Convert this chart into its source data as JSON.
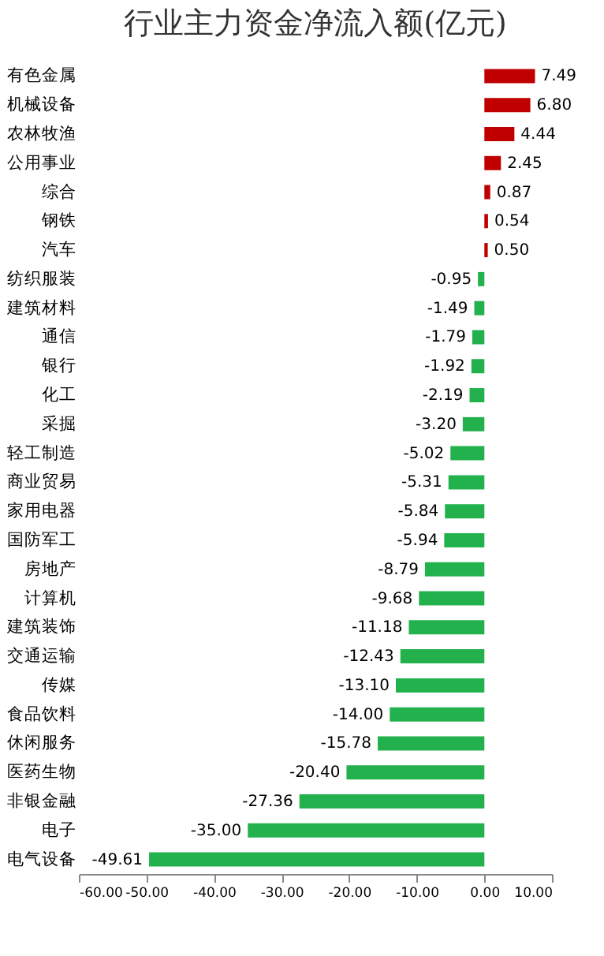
{
  "chart_data": {
    "type": "bar",
    "orientation": "horizontal",
    "title": "行业主力资金净流入额(亿元)",
    "categories": [
      "有色金属",
      "机械设备",
      "农林牧渔",
      "公用事业",
      "综合",
      "钢铁",
      "汽车",
      "纺织服装",
      "建筑材料",
      "通信",
      "银行",
      "化工",
      "采掘",
      "轻工制造",
      "商业贸易",
      "家用电器",
      "国防军工",
      "房地产",
      "计算机",
      "建筑装饰",
      "交通运输",
      "传媒",
      "食品饮料",
      "休闲服务",
      "医药生物",
      "非银金融",
      "电子",
      "电气设备"
    ],
    "values": [
      7.49,
      6.8,
      4.44,
      2.45,
      0.87,
      0.54,
      0.5,
      -0.95,
      -1.49,
      -1.79,
      -1.92,
      -2.19,
      -3.2,
      -5.02,
      -5.31,
      -5.84,
      -5.94,
      -8.79,
      -9.68,
      -11.18,
      -12.43,
      -13.1,
      -14,
      -15.78,
      -20.4,
      -27.36,
      -35,
      -49.61
    ],
    "value_labels": [
      "7.49",
      "6.80",
      "4.44",
      "2.45",
      "0.87",
      "0.54",
      "0.50",
      "-0.95",
      "-1.49",
      "-1.79",
      "-1.92",
      "-2.19",
      "-3.20",
      "-5.02",
      "-5.31",
      "-5.84",
      "-5.94",
      "-8.79",
      "-9.68",
      "-11.18",
      "-12.43",
      "-13.10",
      "-14.00",
      "-15.78",
      "-20.40",
      "-27.36",
      "-35.00",
      "-49.61"
    ],
    "colors": [
      "#c00000",
      "#c00000",
      "#c00000",
      "#c00000",
      "#c00000",
      "#c00000",
      "#c00000",
      "#22b14c",
      "#22b14c",
      "#22b14c",
      "#22b14c",
      "#22b14c",
      "#22b14c",
      "#22b14c",
      "#22b14c",
      "#22b14c",
      "#22b14c",
      "#22b14c",
      "#22b14c",
      "#22b14c",
      "#22b14c",
      "#22b14c",
      "#22b14c",
      "#22b14c",
      "#22b14c",
      "#22b14c",
      "#22b14c",
      "#22b14c"
    ],
    "xlim": [
      -60,
      10
    ],
    "xticks": [
      {
        "value": -60,
        "label": "-60.00"
      },
      {
        "value": -50,
        "label": "-50.00"
      },
      {
        "value": -40,
        "label": "-40.00"
      },
      {
        "value": -30,
        "label": "-30.00"
      },
      {
        "value": -20,
        "label": "-20.00"
      },
      {
        "value": -10,
        "label": "-10.00"
      },
      {
        "value": 0,
        "label": "0.00"
      },
      {
        "value": 10,
        "label": "10.00"
      }
    ],
    "grid": false
  }
}
